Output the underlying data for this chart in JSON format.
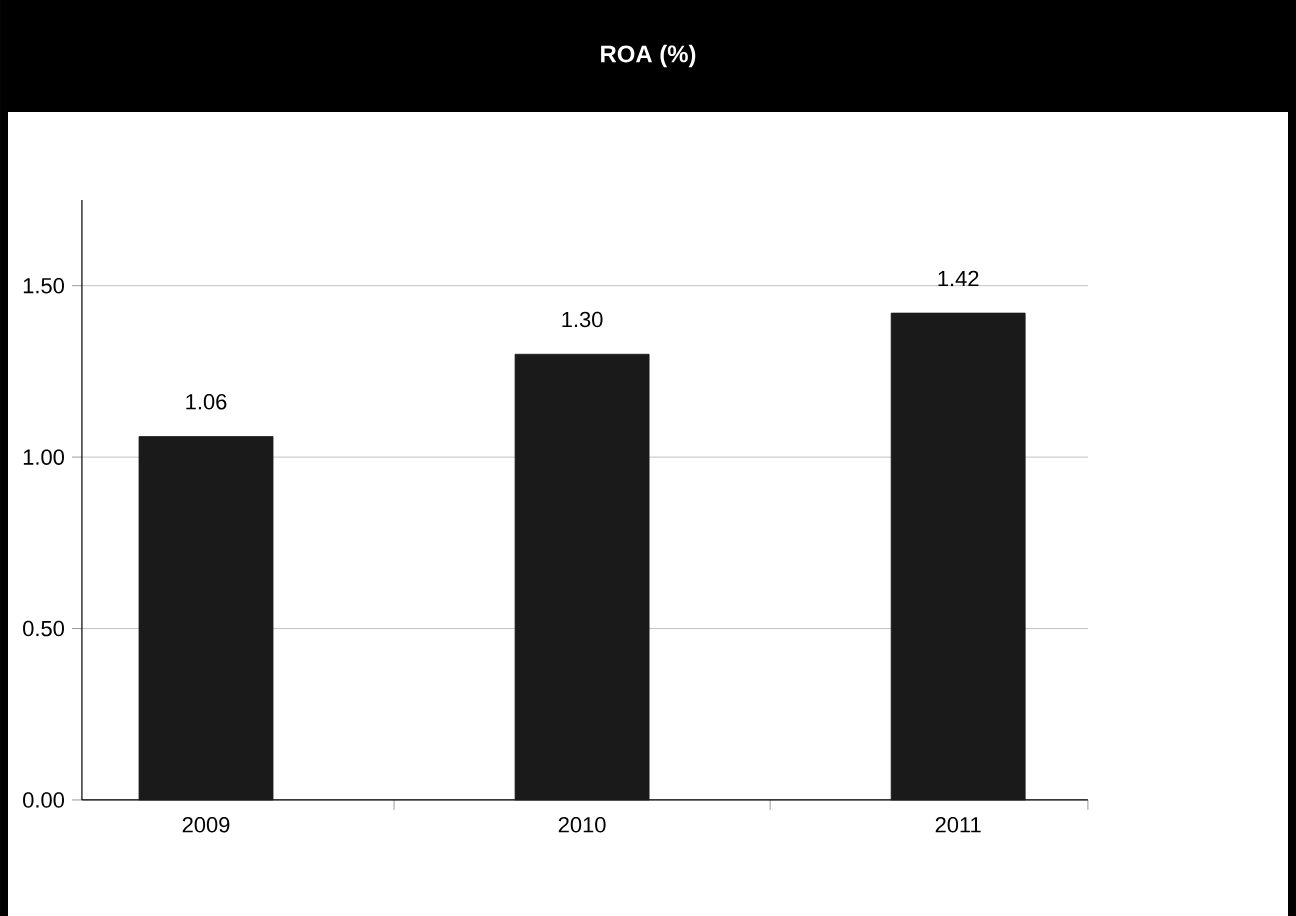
{
  "chart_data": {
    "type": "bar",
    "title": "**ROA (%)**",
    "categories": [
      "2009",
      "2010",
      "2011"
    ],
    "values": [
      1.06,
      1.3,
      1.42
    ],
    "color": "#1a1a1a",
    "ylim": [
      0,
      1.75
    ],
    "yticks": [
      {
        "value": 0,
        "label": "0.00"
      },
      {
        "value": 0.5,
        "label": "0.50"
      },
      {
        "value": 1,
        "label": "1.00"
      },
      {
        "value": 1.5,
        "label": "1.50"
      }
    ],
    "value_labels": [
      "1.06",
      "1.30",
      "1.42"
    ],
    "grid": "y"
  }
}
